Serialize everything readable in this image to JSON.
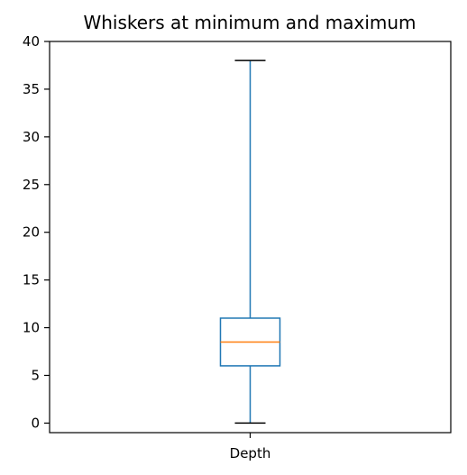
{
  "chart_data": {
    "type": "box",
    "title": "Whiskers at minimum and maximum",
    "xlabel": "",
    "ylabel": "",
    "categories": [
      "Depth"
    ],
    "ylim": [
      -1,
      40
    ],
    "yticks": [
      0,
      5,
      10,
      15,
      20,
      25,
      30,
      35,
      40
    ],
    "grid": false,
    "boxes": [
      {
        "label": "Depth",
        "whisker_low": 0,
        "q1": 6,
        "median": 8.5,
        "q3": 11,
        "whisker_high": 38
      }
    ],
    "colors": {
      "box": "#1f77b4",
      "median": "#ff7f0e",
      "whisker": "#1f77b4",
      "cap": "#000000",
      "axes": "#000000"
    }
  }
}
